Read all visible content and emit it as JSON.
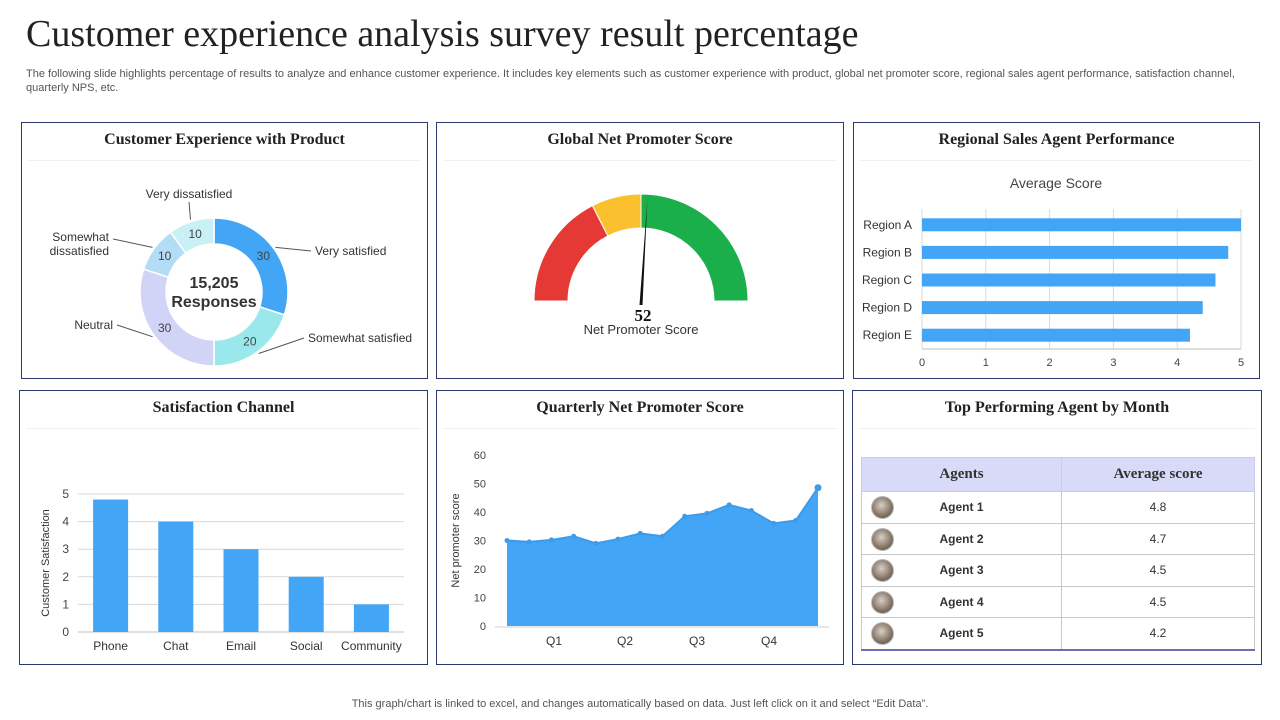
{
  "header": {
    "title": "Customer experience analysis survey result percentage",
    "subtitle": "The following slide highlights percentage of results to analyze and enhance customer experience. It includes key elements such as customer experience with product, global net promoter score, regional sales agent performance, satisfaction channel, quarterly NPS, etc."
  },
  "panels": {
    "product": {
      "title": "Customer Experience with Product"
    },
    "nps": {
      "title": "Global Net Promoter Score"
    },
    "regional": {
      "title": "Regional Sales Agent Performance"
    },
    "channel": {
      "title": "Satisfaction Channel"
    },
    "quarterly": {
      "title": "Quarterly Net Promoter Score"
    },
    "agents": {
      "title": "Top Performing Agent by Month"
    }
  },
  "footer": "This graph/chart is linked to excel,  and changes automatically based on data. Just left click on it and select “Edit Data”.",
  "agents_table": {
    "headers": [
      "Agents",
      "Average score"
    ],
    "rows": [
      {
        "name": "Agent 1",
        "score": "4.8"
      },
      {
        "name": "Agent 2",
        "score": "4.7"
      },
      {
        "name": "Agent 3",
        "score": "4.5"
      },
      {
        "name": "Agent 4",
        "score": "4.5"
      },
      {
        "name": "Agent 5",
        "score": "4.2"
      }
    ]
  },
  "colors": {
    "accent_blue": "#42a5f5",
    "light_blue": "#90caf9",
    "pale_blue": "#b3e5fc",
    "lavender": "#d1d3f7",
    "aqua": "#9ae8ec",
    "gauge_red": "#e53935",
    "gauge_yellow": "#fbc02d",
    "gauge_green": "#1aaf4b",
    "border_navy": "#2e3a6b"
  },
  "chart_data": [
    {
      "type": "pie",
      "center_label_value": "15,205",
      "center_label_text": "Responses",
      "categories": [
        "Very satisfied",
        "Somewhat satisfied",
        "Neutral",
        "Somewhat dissatisfied",
        "Very dissatisfied"
      ],
      "values": [
        30,
        20,
        30,
        10,
        10
      ],
      "colors": [
        "#42a5f5",
        "#9ae8ec",
        "#d1d3f7",
        "#b3dcf7",
        "#c9f0f4"
      ]
    },
    {
      "type": "gauge",
      "value": 52,
      "min": 0,
      "max": 100,
      "label": "Net Promoter Score",
      "bands": [
        {
          "from": 0,
          "to": 35,
          "color": "#e53935"
        },
        {
          "from": 35,
          "to": 50,
          "color": "#fbc02d"
        },
        {
          "from": 50,
          "to": 100,
          "color": "#1aaf4b"
        }
      ]
    },
    {
      "type": "bar",
      "orientation": "horizontal",
      "title": "Average Score",
      "categories": [
        "Region A",
        "Region B",
        "Region C",
        "Region D",
        "Region E"
      ],
      "values": [
        5.0,
        4.8,
        4.6,
        4.4,
        4.2
      ],
      "xlim": [
        0,
        5
      ],
      "xticks": [
        0,
        1,
        2,
        3,
        4,
        5
      ],
      "grid": true
    },
    {
      "type": "bar",
      "categories": [
        "Phone",
        "Chat",
        "Email",
        "Social",
        "Community"
      ],
      "values": [
        4.8,
        4,
        3,
        2,
        1
      ],
      "ylabel": "Customer Satisfaction",
      "ylim": [
        0,
        5
      ],
      "yticks": [
        0,
        1,
        2,
        3,
        4,
        5
      ],
      "grid": true
    },
    {
      "type": "area",
      "ylabel": "Net promoter score",
      "ylim": [
        0,
        60
      ],
      "yticks": [
        0,
        10,
        20,
        30,
        40,
        50,
        60
      ],
      "quarter_labels": [
        "Q1",
        "Q2",
        "Q3",
        "Q4"
      ],
      "values": [
        30,
        29.5,
        30.2,
        31.5,
        29,
        30.5,
        32.5,
        31.5,
        38.5,
        39.5,
        42.5,
        40.5,
        36,
        37,
        48.5
      ]
    }
  ]
}
